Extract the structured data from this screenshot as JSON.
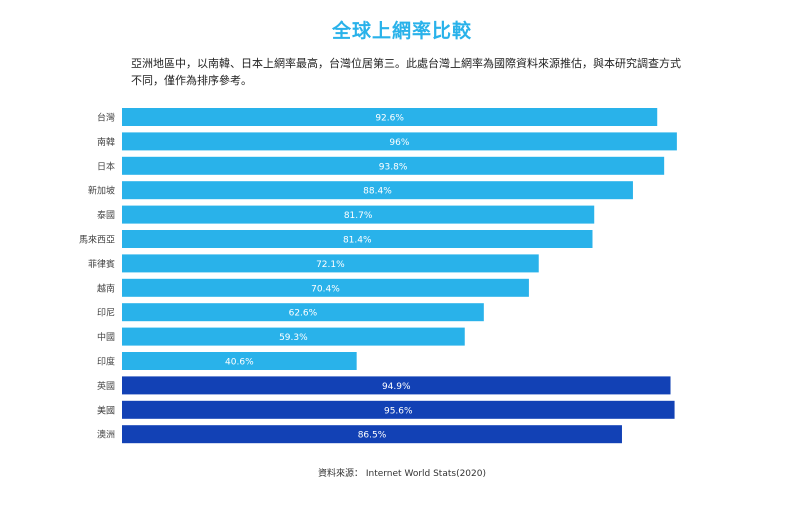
{
  "title": "全球上網率比較",
  "description": "亞洲地區中，以南韓、日本上網率最高，台灣位居第三。此處台灣上網率為國際資料來源推估，與本研究調查方式不同，僅作為排序參考。",
  "source": "資料來源： Internet World Stats(2020)",
  "colors": {
    "title": "#29b2ea",
    "asia_bar": "#29b2ea",
    "other_bar": "#1241b5",
    "bar_label": "#ffffff",
    "category_label": "#444444"
  },
  "chart_data": {
    "type": "bar",
    "orientation": "horizontal",
    "unit": "%",
    "xlim": [
      0,
      100
    ],
    "grid": false,
    "legend": "none",
    "categories": [
      "台灣",
      "南韓",
      "日本",
      "新加坡",
      "泰國",
      "馬來西亞",
      "菲律賓",
      "越南",
      "印尼",
      "中國",
      "印度",
      "英國",
      "美國",
      "澳洲"
    ],
    "values": [
      92.6,
      96,
      93.8,
      88.4,
      81.7,
      81.4,
      72.1,
      70.4,
      62.6,
      59.3,
      40.6,
      94.9,
      95.6,
      86.5
    ],
    "value_labels": [
      "92.6%",
      "96%",
      "93.8%",
      "88.4%",
      "81.7%",
      "81.4%",
      "72.1%",
      "70.4%",
      "62.6%",
      "59.3%",
      "40.6%",
      "94.9%",
      "95.6%",
      "86.5%"
    ],
    "group": [
      "asia",
      "asia",
      "asia",
      "asia",
      "asia",
      "asia",
      "asia",
      "asia",
      "asia",
      "asia",
      "asia",
      "other",
      "other",
      "other"
    ]
  }
}
